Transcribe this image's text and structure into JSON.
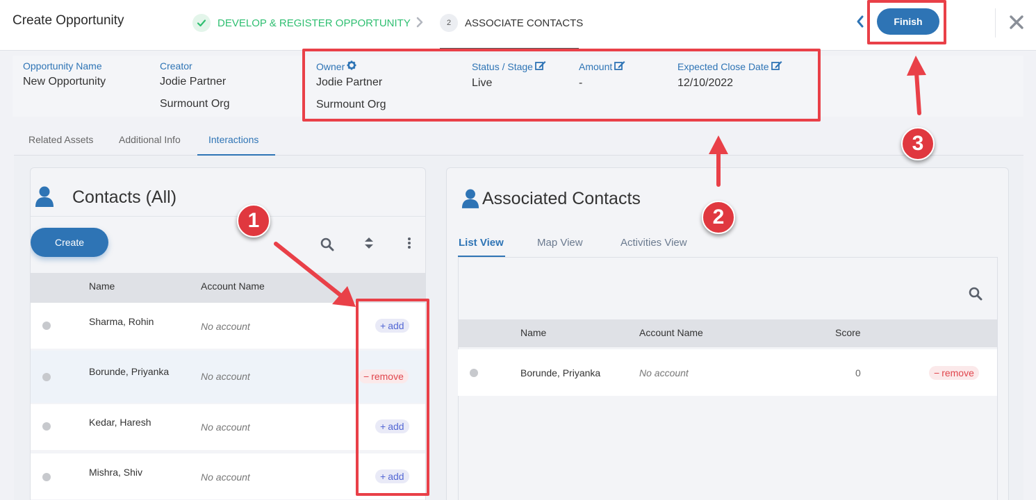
{
  "header": {
    "title": "Create Opportunity",
    "steps": [
      {
        "number": "",
        "label": "DEVELOP & REGISTER OPPORTUNITY",
        "state": "complete"
      },
      {
        "number": "2",
        "label": "ASSOCIATE CONTACTS",
        "state": "current"
      }
    ],
    "finish_label": "Finish"
  },
  "summary": {
    "opportunity_name": {
      "label": "Opportunity Name",
      "value": "New Opportunity"
    },
    "creator": {
      "label": "Creator",
      "value": "Jodie Partner",
      "org": "Surmount Org"
    },
    "owner": {
      "label": "Owner",
      "value": "Jodie Partner",
      "org": "Surmount Org"
    },
    "status": {
      "label": "Status / Stage",
      "value": "Live"
    },
    "amount": {
      "label": "Amount",
      "value": "-"
    },
    "close_date": {
      "label": "Expected Close Date",
      "value": "12/10/2022"
    }
  },
  "tabs": [
    "Related Assets",
    "Additional Info",
    "Interactions"
  ],
  "contacts_panel": {
    "title": "Contacts (All)",
    "create_label": "Create",
    "columns": [
      "Name",
      "Account Name"
    ],
    "rows": [
      {
        "name": "Sharma, Rohin",
        "account": "No account",
        "action": "add"
      },
      {
        "name": "Borunde, Priyanka",
        "account": "No account",
        "action": "remove"
      },
      {
        "name": "Kedar, Haresh",
        "account": "No account",
        "action": "add"
      },
      {
        "name": "Mishra, Shiv",
        "account": "No account",
        "action": "add"
      }
    ],
    "add_label": "add",
    "remove_label": "remove"
  },
  "associated_panel": {
    "title": "Associated Contacts",
    "tabs": [
      "List View",
      "Map View",
      "Activities View"
    ],
    "columns": [
      "Name",
      "Account Name",
      "Score"
    ],
    "rows": [
      {
        "name": "Borunde, Priyanka",
        "account": "No account",
        "score": "0",
        "action": "remove"
      }
    ]
  },
  "annotations": [
    "1",
    "2",
    "3"
  ],
  "colors": {
    "accent": "#2e74b5",
    "success": "#2fbf71",
    "annotation": "#e94048",
    "remove": "#e0454c",
    "add": "#5468d4"
  }
}
